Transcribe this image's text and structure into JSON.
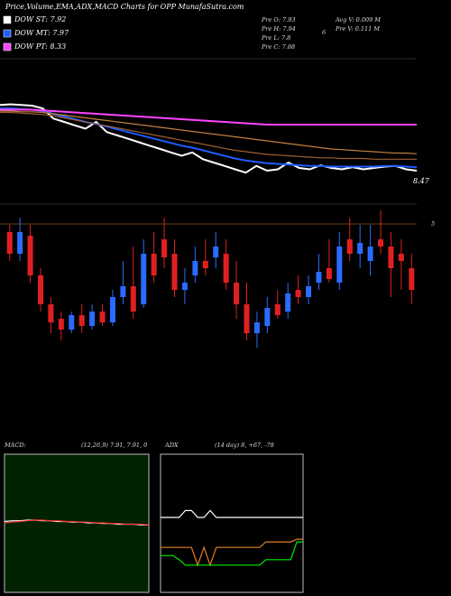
{
  "chart_data": [
    {
      "type": "line",
      "title": "Price,Volume,EMA,ADX,MACD Charts for OPP MunafaSutra.com",
      "annotations": [
        "Pre  O: 7.93",
        "Pre  H: 7.94",
        "Pre  L: 7.8",
        "Pre  C: 7.88",
        "Avg  V: 0.009 M",
        "Pre  V: 0.111 M",
        "6",
        "8.47"
      ],
      "ylim": [
        8.1,
        10.3
      ],
      "series": [
        {
          "name": "DOW ST: 7.92",
          "color": "#ffffff",
          "values": [
            9.55,
            9.56,
            9.55,
            9.54,
            9.5,
            9.35,
            9.3,
            9.25,
            9.2,
            9.3,
            9.15,
            9.1,
            9.05,
            9.0,
            8.95,
            8.9,
            8.85,
            8.8,
            8.85,
            8.75,
            8.7,
            8.65,
            8.6,
            8.55,
            8.65,
            8.58,
            8.6,
            8.7,
            8.62,
            8.6,
            8.66,
            8.62,
            8.6,
            8.63,
            8.6,
            8.62,
            8.64,
            8.65,
            8.6,
            8.58
          ]
        },
        {
          "name": "DOW MT: 7.97",
          "color": "#1e5cff",
          "values": [
            9.5,
            9.5,
            9.49,
            9.48,
            9.46,
            9.42,
            9.38,
            9.34,
            9.3,
            9.27,
            9.23,
            9.19,
            9.15,
            9.11,
            9.07,
            9.03,
            8.99,
            8.95,
            8.92,
            8.88,
            8.84,
            8.8,
            8.76,
            8.73,
            8.71,
            8.69,
            8.68,
            8.67,
            8.66,
            8.65,
            8.65,
            8.64,
            8.64,
            8.64,
            8.64,
            8.64,
            8.65,
            8.65,
            8.64,
            8.63
          ]
        },
        {
          "name": "DOW PT: 8.33",
          "color": "#ff44ff",
          "values": [
            9.48,
            9.48,
            9.48,
            9.48,
            9.47,
            9.46,
            9.45,
            9.44,
            9.43,
            9.42,
            9.41,
            9.4,
            9.39,
            9.38,
            9.37,
            9.36,
            9.35,
            9.34,
            9.33,
            9.32,
            9.31,
            9.3,
            9.29,
            9.28,
            9.27,
            9.26,
            9.26,
            9.26,
            9.26,
            9.26,
            9.26,
            9.26,
            9.26,
            9.26,
            9.26,
            9.26,
            9.26,
            9.26,
            9.26,
            9.26
          ]
        },
        {
          "color": "#c08040",
          "values": [
            9.46,
            9.46,
            9.45,
            9.45,
            9.44,
            9.42,
            9.4,
            9.38,
            9.36,
            9.34,
            9.32,
            9.3,
            9.28,
            9.26,
            9.24,
            9.22,
            9.2,
            9.18,
            9.16,
            9.14,
            9.12,
            9.1,
            9.08,
            9.06,
            9.04,
            9.02,
            9.0,
            8.98,
            8.96,
            8.94,
            8.92,
            8.9,
            8.89,
            8.88,
            8.87,
            8.86,
            8.85,
            8.84,
            8.84,
            8.83
          ]
        },
        {
          "color": "#a06030",
          "values": [
            9.44,
            9.44,
            9.43,
            9.42,
            9.41,
            9.39,
            9.36,
            9.33,
            9.3,
            9.27,
            9.24,
            9.21,
            9.18,
            9.15,
            9.12,
            9.09,
            9.06,
            9.03,
            9.0,
            8.97,
            8.94,
            8.91,
            8.88,
            8.86,
            8.84,
            8.82,
            8.81,
            8.8,
            8.79,
            8.78,
            8.77,
            8.77,
            8.76,
            8.76,
            8.76,
            8.75,
            8.75,
            8.75,
            8.75,
            8.75
          ]
        }
      ]
    },
    {
      "type": "candlestick",
      "annotations": [
        "5"
      ],
      "ylim": [
        7.0,
        9.0
      ],
      "up_color": "#2a6cff",
      "down_color": "#e02020",
      "open": [
        8.6,
        8.3,
        8.55,
        8.0,
        7.6,
        7.4,
        7.25,
        7.45,
        7.3,
        7.5,
        7.35,
        7.7,
        7.85,
        7.6,
        8.3,
        8.5,
        8.3,
        7.8,
        8.0,
        8.2,
        8.25,
        8.3,
        7.9,
        7.6,
        7.2,
        7.3,
        7.6,
        7.5,
        7.8,
        7.7,
        7.9,
        8.1,
        7.9,
        8.5,
        8.3,
        8.2,
        8.5,
        8.4,
        8.3,
        8.1
      ],
      "high": [
        8.7,
        8.8,
        8.7,
        8.1,
        7.7,
        7.5,
        7.5,
        7.6,
        7.6,
        7.6,
        7.8,
        8.2,
        8.4,
        8.5,
        8.6,
        8.8,
        8.5,
        8.1,
        8.4,
        8.5,
        8.6,
        8.5,
        8.2,
        7.9,
        7.5,
        7.7,
        7.8,
        7.9,
        8.0,
        8.0,
        8.3,
        8.5,
        8.6,
        8.8,
        8.7,
        8.7,
        8.9,
        8.6,
        8.5,
        8.3
      ],
      "low": [
        8.2,
        8.2,
        7.9,
        7.5,
        7.2,
        7.1,
        7.2,
        7.2,
        7.25,
        7.3,
        7.3,
        7.6,
        7.4,
        7.55,
        7.9,
        8.1,
        7.7,
        7.6,
        7.9,
        8.0,
        8.1,
        7.8,
        7.4,
        7.1,
        7.0,
        7.2,
        7.4,
        7.4,
        7.6,
        7.6,
        7.8,
        7.9,
        7.8,
        8.2,
        8.1,
        8.0,
        8.3,
        7.7,
        7.8,
        7.6
      ],
      "close": [
        8.3,
        8.6,
        8.0,
        7.6,
        7.35,
        7.25,
        7.45,
        7.3,
        7.5,
        7.35,
        7.7,
        7.85,
        7.5,
        8.3,
        8.0,
        8.25,
        7.8,
        7.9,
        8.2,
        8.1,
        8.4,
        7.9,
        7.6,
        7.2,
        7.35,
        7.55,
        7.45,
        7.75,
        7.7,
        7.85,
        8.05,
        7.95,
        8.4,
        8.3,
        8.45,
        8.4,
        8.4,
        8.1,
        8.2,
        7.8
      ]
    },
    {
      "type": "line",
      "title": "MACD:",
      "subtitle": "(12,26,9) 7.91, 7.91, 0",
      "ylim": [
        -1,
        1
      ],
      "background": "#002200",
      "series": [
        {
          "color": "#ffffff",
          "values": [
            0.04,
            0.05,
            0.05,
            0.06,
            0.06,
            0.05,
            0.05,
            0.04,
            0.04,
            0.03,
            0.03,
            0.02,
            0.02,
            0.01,
            0.01,
            0.0,
            0.0,
            0.0,
            -0.01,
            -0.01
          ]
        },
        {
          "color": "#ff3030",
          "values": [
            0.02,
            0.03,
            0.04,
            0.05,
            0.06,
            0.06,
            0.05,
            0.05,
            0.04,
            0.04,
            0.03,
            0.03,
            0.02,
            0.02,
            0.01,
            0.01,
            0.0,
            0.0,
            0.0,
            -0.01
          ]
        }
      ]
    },
    {
      "type": "line",
      "title": "ADX",
      "subtitle": "(14 day) 8, +67, -78",
      "ylim": [
        0,
        100
      ],
      "background": "#000000",
      "series": [
        {
          "color": "#ffffff",
          "values": [
            55,
            55,
            55,
            55,
            60,
            60,
            55,
            55,
            60,
            55,
            55,
            55,
            55,
            55,
            55,
            55,
            55,
            55,
            55,
            55,
            55,
            55,
            55,
            55
          ]
        },
        {
          "color": "#e08020",
          "values": [
            33,
            33,
            33,
            33,
            33,
            33,
            20,
            33,
            20,
            33,
            33,
            33,
            33,
            33,
            33,
            33,
            33,
            37,
            37,
            37,
            37,
            37,
            39,
            39
          ]
        },
        {
          "color": "#00ee00",
          "values": [
            27,
            27,
            27,
            24,
            20,
            20,
            20,
            20,
            20,
            20,
            20,
            20,
            20,
            20,
            20,
            20,
            20,
            24,
            24,
            24,
            24,
            24,
            37,
            37
          ]
        }
      ]
    }
  ]
}
